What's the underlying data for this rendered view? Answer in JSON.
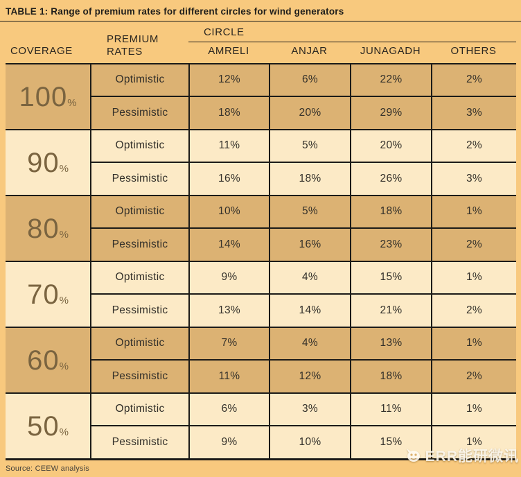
{
  "title": "TABLE 1: Range of premium rates for different circles for wind generators",
  "header": {
    "coverage": "COVERAGE",
    "premium_rates": "PREMIUM RATES",
    "circle_group": "CIRCLE",
    "circle_columns": [
      "AMRELI",
      "ANJAR",
      "JUNAGADH",
      "OTHERS"
    ]
  },
  "chart_data": {
    "type": "table",
    "table_number": "TABLE 1",
    "title": "Range of premium rates for different circles for wind generators",
    "unit": "percent",
    "columns": [
      "COVERAGE",
      "PREMIUM RATES",
      "AMRELI",
      "ANJAR",
      "JUNAGADH",
      "OTHERS"
    ],
    "column_group": {
      "label": "CIRCLE",
      "spans": [
        "AMRELI",
        "ANJAR",
        "JUNAGADH",
        "OTHERS"
      ]
    },
    "bands": [
      {
        "coverage": 100,
        "rows": [
          {
            "label": "Optimistic",
            "values": [
              12,
              6,
              22,
              2
            ]
          },
          {
            "label": "Pessimistic",
            "values": [
              18,
              20,
              29,
              3
            ]
          }
        ]
      },
      {
        "coverage": 90,
        "rows": [
          {
            "label": "Optimistic",
            "values": [
              11,
              5,
              20,
              2
            ]
          },
          {
            "label": "Pessimistic",
            "values": [
              16,
              18,
              26,
              3
            ]
          }
        ]
      },
      {
        "coverage": 80,
        "rows": [
          {
            "label": "Optimistic",
            "values": [
              10,
              5,
              18,
              1
            ]
          },
          {
            "label": "Pessimistic",
            "values": [
              14,
              16,
              23,
              2
            ]
          }
        ]
      },
      {
        "coverage": 70,
        "rows": [
          {
            "label": "Optimistic",
            "values": [
              9,
              4,
              15,
              1
            ]
          },
          {
            "label": "Pessimistic",
            "values": [
              13,
              14,
              21,
              2
            ]
          }
        ]
      },
      {
        "coverage": 60,
        "rows": [
          {
            "label": "Optimistic",
            "values": [
              7,
              4,
              13,
              1
            ]
          },
          {
            "label": "Pessimistic",
            "values": [
              11,
              12,
              18,
              2
            ]
          }
        ]
      },
      {
        "coverage": 50,
        "rows": [
          {
            "label": "Optimistic",
            "values": [
              6,
              3,
              11,
              1
            ]
          },
          {
            "label": "Pessimistic",
            "values": [
              9,
              10,
              15,
              1
            ]
          }
        ]
      }
    ],
    "source": "Source: CEEW analysis"
  },
  "footer": {
    "source": "Source: CEEW analysis"
  },
  "watermark": {
    "text": "ERR能研微讯"
  },
  "colors": {
    "page_bg": "#F8C97E",
    "band_dark": "#DCB273",
    "band_light": "#FCEAC6",
    "border": "#1C1B18",
    "text": "#2E2B25",
    "coverage_text": "#7A6440"
  }
}
